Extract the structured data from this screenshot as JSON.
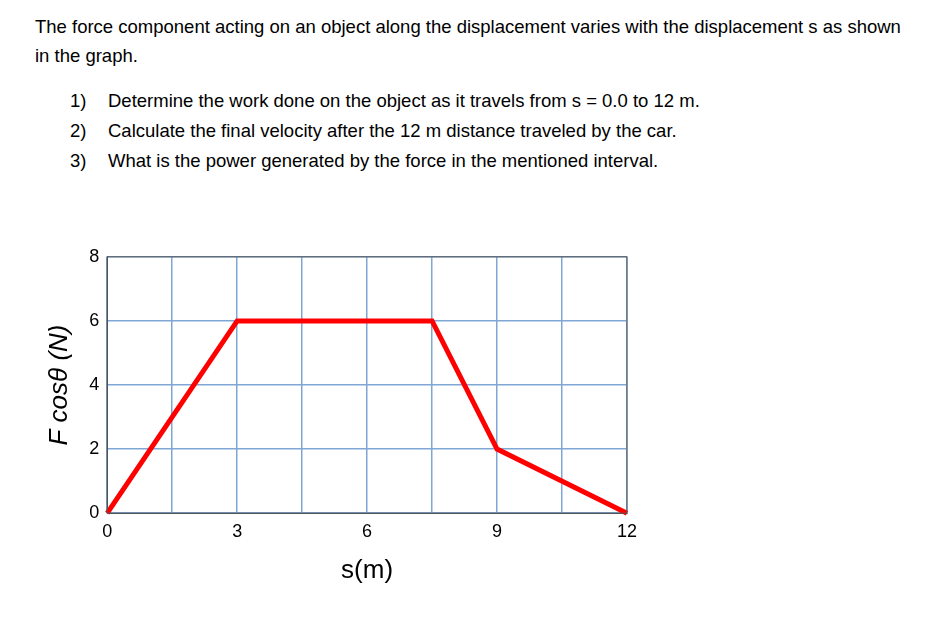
{
  "problem": {
    "text": "The force component acting on an object along the displacement varies with the displacement s as shown in the graph.",
    "items": [
      {
        "number": "1)",
        "text": "Determine the work done on the object as it travels from s = 0.0 to 12 m."
      },
      {
        "number": "2)",
        "text": "Calculate the final velocity after the 12 m distance traveled by the car."
      },
      {
        "number": "3)",
        "text": "What is the power generated by the force in the mentioned interval."
      }
    ]
  },
  "chart_data": {
    "type": "line",
    "x_label": "s(m)",
    "y_label": "F cosθ (N)",
    "x": [
      0,
      3,
      7.5,
      9,
      12
    ],
    "values": [
      0,
      6,
      6,
      2,
      0
    ],
    "color": "#ff0000",
    "xlim": [
      0,
      12
    ],
    "xticks": [
      0,
      3,
      6,
      9,
      12
    ],
    "ylim": [
      0,
      8
    ],
    "yticks": [
      0,
      2,
      4,
      6,
      8
    ],
    "grid": true
  }
}
